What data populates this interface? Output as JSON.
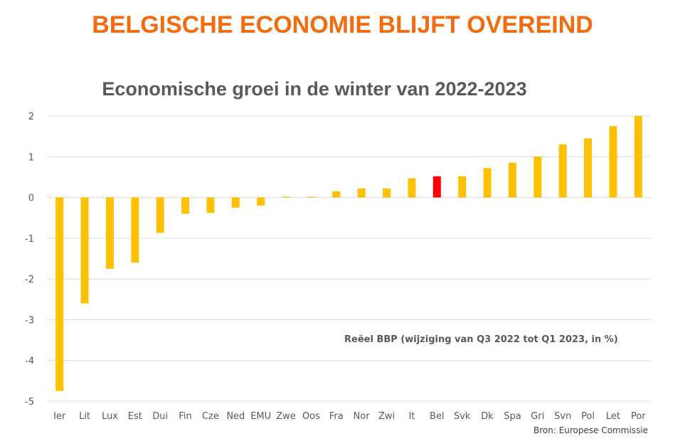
{
  "header": {
    "headline": "BELGISCHE ECONOMIE BLIJFT OVEREIND"
  },
  "colors": {
    "headline": "#f26b0f",
    "bar": "#ffc000",
    "highlight": "#ff0000",
    "grid": "#d9d9d9"
  },
  "chart_data": {
    "type": "bar",
    "title": "Economische groei in de winter van 2022-2023",
    "annotation": "Reëel BBP (wijziging van Q3 2022 tot Q1 2023, in %)",
    "source": "Bron: Europese Commissie",
    "categories": [
      "Ier",
      "Lit",
      "Lux",
      "Est",
      "Dui",
      "Fin",
      "Cze",
      "Ned",
      "EMU",
      "Zwe",
      "Oos",
      "Fra",
      "Nor",
      "Zwi",
      "It",
      "Bel",
      "Svk",
      "Dk",
      "Spa",
      "Gri",
      "Svn",
      "Pol",
      "Let",
      "Por"
    ],
    "values": [
      -4.75,
      -2.6,
      -1.75,
      -1.6,
      -0.87,
      -0.4,
      -0.38,
      -0.25,
      -0.2,
      0.02,
      0.02,
      0.15,
      0.22,
      0.22,
      0.47,
      0.52,
      0.52,
      0.72,
      0.85,
      1.0,
      1.3,
      1.45,
      1.75,
      2.0
    ],
    "highlight": "Bel",
    "ylim": [
      -5,
      2
    ],
    "yticks": [
      2,
      1,
      0,
      -1,
      -2,
      -3,
      -4,
      -5
    ],
    "grid": true,
    "legend": "none"
  }
}
